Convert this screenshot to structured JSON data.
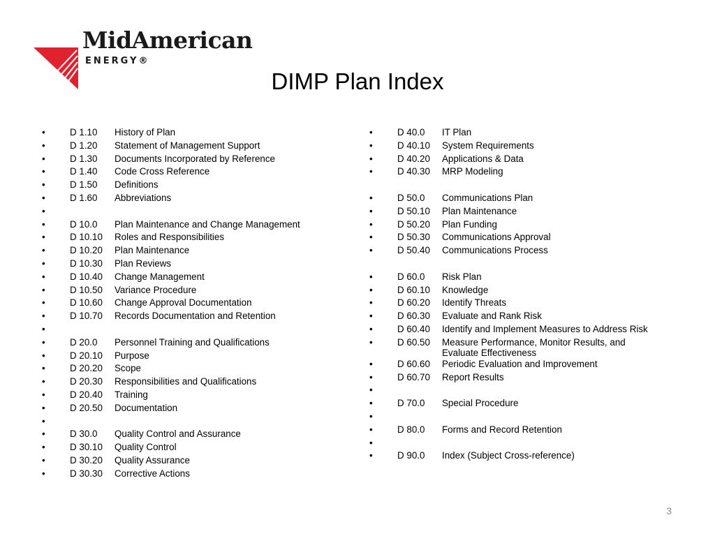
{
  "brand": {
    "name": "MidAmerican",
    "sub": "ENERGY®",
    "accent": "#e0222f"
  },
  "title": "DIMP Plan Index",
  "bullet": "•",
  "left_items": [
    {
      "code": "D 1.10",
      "label": "History of Plan"
    },
    {
      "code": "D 1.20",
      "label": "Statement of Management Support"
    },
    {
      "code": "D 1.30",
      "label": "Documents Incorporated by Reference"
    },
    {
      "code": "D 1.40",
      "label": "Code Cross Reference"
    },
    {
      "code": "D 1.50",
      "label": "Definitions"
    },
    {
      "code": "D 1.60",
      "label": "Abbreviations"
    },
    {
      "code": "",
      "label": ""
    },
    {
      "code": "D 10.0",
      "label": "Plan Maintenance and Change Management"
    },
    {
      "code": "D 10.10",
      "label": "Roles and Responsibilities"
    },
    {
      "code": "D 10.20",
      "label": "Plan Maintenance"
    },
    {
      "code": "D 10.30",
      "label": "Plan Reviews"
    },
    {
      "code": "D 10.40",
      "label": "Change Management"
    },
    {
      "code": "D 10.50",
      "label": "Variance Procedure"
    },
    {
      "code": "D 10.60",
      "label": "Change Approval Documentation"
    },
    {
      "code": "D 10.70",
      "label": "Records Documentation and Retention"
    },
    {
      "code": "",
      "label": ""
    },
    {
      "code": "D 20.0",
      "label": "Personnel Training and Qualifications"
    },
    {
      "code": "D 20.10",
      "label": "Purpose"
    },
    {
      "code": "D 20.20",
      "label": "Scope"
    },
    {
      "code": "D 20.30",
      "label": "Responsibilities and Qualifications"
    },
    {
      "code": "D 20.40",
      "label": "Training"
    },
    {
      "code": "D 20.50",
      "label": "Documentation"
    },
    {
      "code": "",
      "label": ""
    },
    {
      "code": "D 30.0",
      "label": "Quality Control and Assurance"
    },
    {
      "code": "D 30.10",
      "label": "Quality Control"
    },
    {
      "code": "D 30.20",
      "label": "Quality Assurance"
    },
    {
      "code": "D 30.30",
      "label": "Corrective Actions"
    }
  ],
  "right_items": [
    {
      "code": "D 40.0",
      "label": "IT Plan"
    },
    {
      "code": "D 40.10",
      "label": "System Requirements"
    },
    {
      "code": "D 40.20",
      "label": "Applications & Data"
    },
    {
      "code": "D 40.30",
      "label": "MRP Modeling"
    },
    {
      "code": "",
      "label": ""
    },
    {
      "code": "D 50.0",
      "label": "Communications Plan"
    },
    {
      "code": "D 50.10",
      "label": "Plan Maintenance"
    },
    {
      "code": "D 50.20",
      "label": "Plan Funding"
    },
    {
      "code": "D 50.30",
      "label": "Communications Approval"
    },
    {
      "code": "D 50.40",
      "label": "Communications Process"
    },
    {
      "code": "",
      "label": ""
    },
    {
      "code": "D 60.0",
      "label": "Risk Plan"
    },
    {
      "code": "D 60.10",
      "label": "Knowledge"
    },
    {
      "code": "D 60.20",
      "label": "Identify Threats"
    },
    {
      "code": "D 60.30",
      "label": "Evaluate and Rank Risk"
    },
    {
      "code": "D 60.40",
      "label": "Identify and Implement Measures to Address Risk"
    },
    {
      "code": "D 60.50",
      "label": "Measure Performance, Monitor Results, and Evaluate Effectiveness"
    },
    {
      "code": "D 60.60",
      "label": "Periodic Evaluation and Improvement"
    },
    {
      "code": "D 60.70",
      "label": "Report Results"
    },
    {
      "code": "",
      "label": ""
    },
    {
      "code": "D 70.0",
      "label": "Special Procedure"
    },
    {
      "code": "",
      "label": ""
    },
    {
      "code": "D 80.0",
      "label": "Forms and Record Retention"
    },
    {
      "code": "",
      "label": ""
    },
    {
      "code": "D 90.0",
      "label": "Index (Subject Cross-reference)"
    }
  ],
  "right_gaps": [
    4,
    10
  ],
  "page_number": "3"
}
